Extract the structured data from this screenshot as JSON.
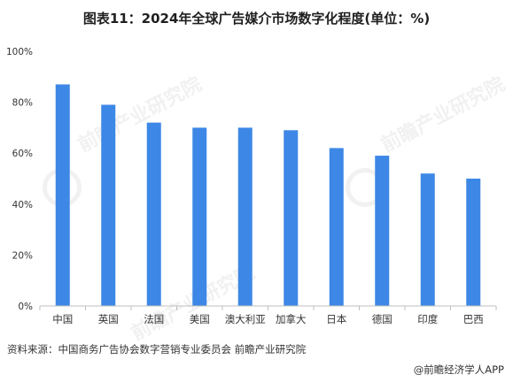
{
  "title": "图表11：2024年全球广告媒介市场数字化程度(单位：%)",
  "source": "资料来源：中国商务广告协会数字营销专业委员会 前瞻产业研究院",
  "brand": "@前瞻经济学人APP",
  "watermark_text": "前瞻产业研究院",
  "colors": {
    "bar": "#3d87e6",
    "axis": "#bfbfbf"
  },
  "chart_data": {
    "type": "bar",
    "categories": [
      "中国",
      "英国",
      "法国",
      "美国",
      "澳大利亚",
      "加拿大",
      "日本",
      "德国",
      "印度",
      "巴西"
    ],
    "values": [
      87,
      79,
      72,
      70,
      70,
      69,
      62,
      59,
      52,
      50
    ],
    "ylim": [
      0,
      100
    ],
    "yticks": [
      0,
      20,
      40,
      60,
      80,
      100
    ],
    "ytick_labels": [
      "0%",
      "20%",
      "40%",
      "60%",
      "80%",
      "100%"
    ],
    "grid": false
  }
}
